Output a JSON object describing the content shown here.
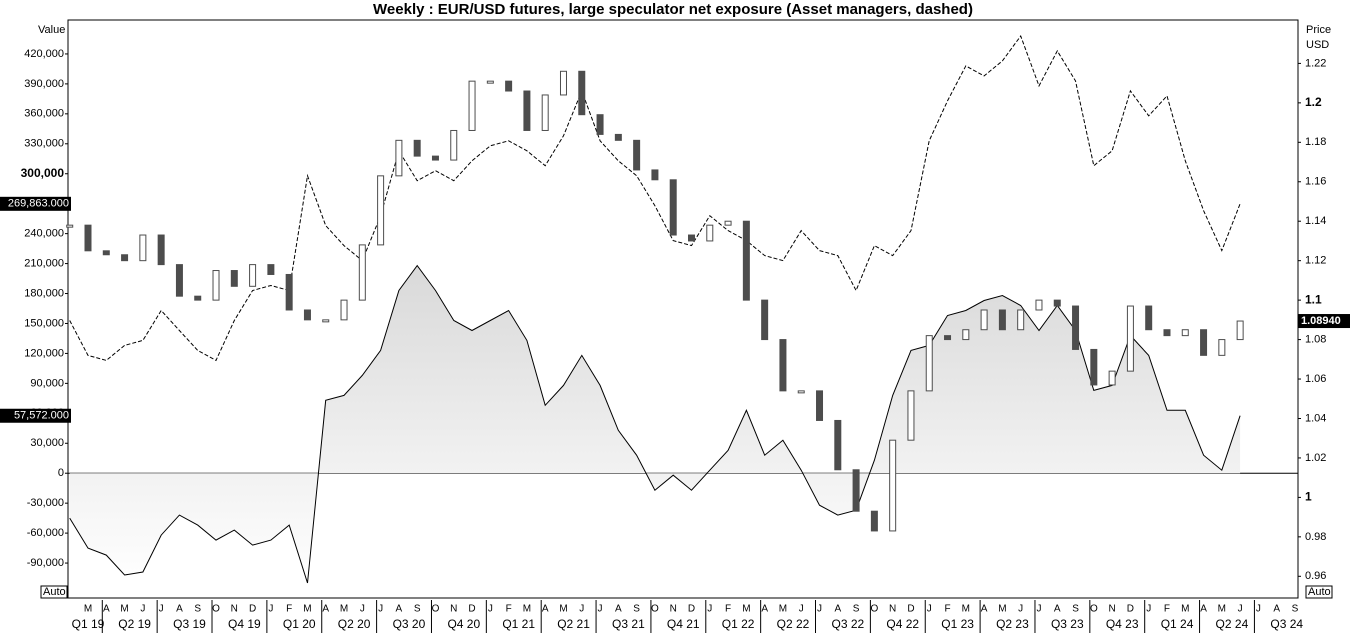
{
  "chart_data": {
    "type": "line",
    "title": "Weekly : EUR/USD futures, large speculator net exposure (Asset managers, dashed)",
    "y_axis_label": "Value",
    "y2_axis_label": [
      "Price",
      "USD"
    ],
    "auto_labels": [
      "Auto",
      "Auto"
    ],
    "x": [
      "2019-02",
      "2019-03",
      "2019-04",
      "2019-05",
      "2019-06",
      "2019-07",
      "2019-08",
      "2019-09",
      "2019-10",
      "2019-11",
      "2019-12",
      "2020-01",
      "2020-02",
      "2020-03",
      "2020-04",
      "2020-05",
      "2020-06",
      "2020-07",
      "2020-08",
      "2020-09",
      "2020-10",
      "2020-11",
      "2020-12",
      "2021-01",
      "2021-02",
      "2021-03",
      "2021-04",
      "2021-05",
      "2021-06",
      "2021-07",
      "2021-08",
      "2021-09",
      "2021-10",
      "2021-11",
      "2021-12",
      "2022-01",
      "2022-02",
      "2022-03",
      "2022-04",
      "2022-05",
      "2022-06",
      "2022-07",
      "2022-08",
      "2022-09",
      "2022-10",
      "2022-11",
      "2022-12",
      "2023-01",
      "2023-02",
      "2023-03",
      "2023-04",
      "2023-05",
      "2023-06",
      "2023-07",
      "2023-08",
      "2023-09",
      "2023-10",
      "2023-11",
      "2023-12",
      "2024-01",
      "2024-02",
      "2024-03",
      "2024-04",
      "2024-05",
      "2024-06"
    ],
    "month_labels": [
      "M",
      "A",
      "M",
      "J",
      "J",
      "A",
      "S",
      "O",
      "N",
      "D",
      "J",
      "F",
      "M",
      "A",
      "M",
      "J",
      "J",
      "A",
      "S",
      "O",
      "N",
      "D",
      "J",
      "F",
      "M",
      "A",
      "M",
      "J",
      "J",
      "A",
      "S",
      "O",
      "N",
      "D",
      "J",
      "F",
      "M",
      "A",
      "M",
      "J",
      "J",
      "A",
      "S",
      "O",
      "N",
      "D",
      "J",
      "F",
      "M",
      "A",
      "M",
      "J",
      "J",
      "A",
      "S",
      "O",
      "N",
      "D",
      "J",
      "F",
      "M",
      "A",
      "M",
      "J",
      "J",
      "A",
      "S"
    ],
    "quarter_labels": [
      "Q1 19",
      "Q2 19",
      "Q3 19",
      "Q4 19",
      "Q1 20",
      "Q2 20",
      "Q3 20",
      "Q4 20",
      "Q1 21",
      "Q2 21",
      "Q3 21",
      "Q4 21",
      "Q1 22",
      "Q2 22",
      "Q3 22",
      "Q4 22",
      "Q1 23",
      "Q2 23",
      "Q3 23",
      "Q4 23",
      "Q1 24",
      "Q2 24",
      "Q3 24"
    ],
    "series": [
      {
        "name": "Large speculators",
        "style": "solid",
        "fill": true,
        "color": "#000000",
        "values": [
          -45000,
          -75000,
          -82000,
          -102000,
          -99000,
          -62000,
          -42000,
          -52000,
          -67000,
          -57000,
          -72000,
          -67000,
          -52000,
          -110000,
          73000,
          78000,
          98000,
          123000,
          183000,
          208000,
          183000,
          153000,
          143000,
          153000,
          163000,
          133000,
          68000,
          88000,
          118000,
          88000,
          43000,
          18000,
          -17000,
          -2000,
          -17000,
          3000,
          23000,
          63000,
          18000,
          33000,
          3000,
          -32000,
          -42000,
          -37000,
          13000,
          78000,
          123000,
          128000,
          158000,
          163000,
          173000,
          178000,
          168000,
          143000,
          168000,
          143000,
          83000,
          88000,
          138000,
          118000,
          63000,
          63000,
          18000,
          3000,
          57572
        ]
      },
      {
        "name": "Asset managers",
        "style": "dashed",
        "fill": false,
        "color": "#000000",
        "values": [
          153000,
          118000,
          113000,
          128000,
          133000,
          163000,
          143000,
          123000,
          113000,
          153000,
          183000,
          188000,
          183000,
          298000,
          248000,
          228000,
          213000,
          258000,
          323000,
          293000,
          303000,
          293000,
          313000,
          328000,
          333000,
          323000,
          308000,
          338000,
          383000,
          333000,
          313000,
          298000,
          268000,
          233000,
          228000,
          258000,
          243000,
          233000,
          218000,
          213000,
          243000,
          223000,
          218000,
          183000,
          228000,
          218000,
          243000,
          333000,
          373000,
          408000,
          398000,
          413000,
          438000,
          388000,
          423000,
          393000,
          308000,
          323000,
          383000,
          358000,
          378000,
          313000,
          263000,
          223000,
          269863
        ]
      },
      {
        "name": "EUR/USD",
        "style": "candles",
        "axis": "y2",
        "color": "#4d4d4d",
        "values": [
          1.138,
          1.125,
          1.123,
          1.12,
          1.133,
          1.118,
          1.102,
          1.1,
          1.115,
          1.107,
          1.118,
          1.113,
          1.095,
          1.09,
          1.09,
          1.1,
          1.128,
          1.163,
          1.181,
          1.173,
          1.171,
          1.186,
          1.211,
          1.211,
          1.206,
          1.186,
          1.204,
          1.216,
          1.194,
          1.184,
          1.181,
          1.166,
          1.161,
          1.133,
          1.13,
          1.138,
          1.14,
          1.1,
          1.08,
          1.054,
          1.054,
          1.039,
          1.014,
          0.993,
          0.983,
          1.029,
          1.054,
          1.082,
          1.08,
          1.085,
          1.095,
          1.085,
          1.095,
          1.1,
          1.097,
          1.075,
          1.057,
          1.064,
          1.097,
          1.085,
          1.082,
          1.085,
          1.072,
          1.08,
          1.0894
        ]
      }
    ],
    "ylim": [
      -125000,
      454000
    ],
    "yticks": [
      {
        "value": -90000,
        "label": "-90,000"
      },
      {
        "value": -60000,
        "label": "-60,000"
      },
      {
        "value": -30000,
        "label": "-30,000"
      },
      0,
      {
        "value": 30000,
        "label": "30,000"
      },
      {
        "value": 60000,
        "label": "60,000"
      },
      {
        "value": 90000,
        "label": "90,000"
      },
      {
        "value": 120000,
        "label": "120,000"
      },
      {
        "value": 150000,
        "label": "150,000"
      },
      {
        "value": 180000,
        "label": "180,000"
      },
      {
        "value": 210000,
        "label": "210,000"
      },
      {
        "value": 240000,
        "label": "240,000"
      },
      {
        "value": 300000,
        "label": "300,000"
      },
      {
        "value": 330000,
        "label": "330,000"
      },
      {
        "value": 360000,
        "label": "360,000"
      },
      {
        "value": 390000,
        "label": "390,000"
      },
      {
        "value": 420000,
        "label": "420,000"
      }
    ],
    "y2lim": [
      0.949,
      1.242
    ],
    "y2ticks": [
      0.96,
      0.98,
      1,
      1.02,
      1.04,
      1.06,
      1.08,
      1.1,
      1.12,
      1.14,
      1.16,
      1.18,
      1.2,
      1.22
    ],
    "last_value_labels": [
      {
        "value": 269863,
        "label": "269,863.000"
      },
      {
        "value": 57572,
        "label": "57,572.000"
      }
    ],
    "last_price_label": {
      "value": 1.0894,
      "label": "1.08940"
    }
  }
}
